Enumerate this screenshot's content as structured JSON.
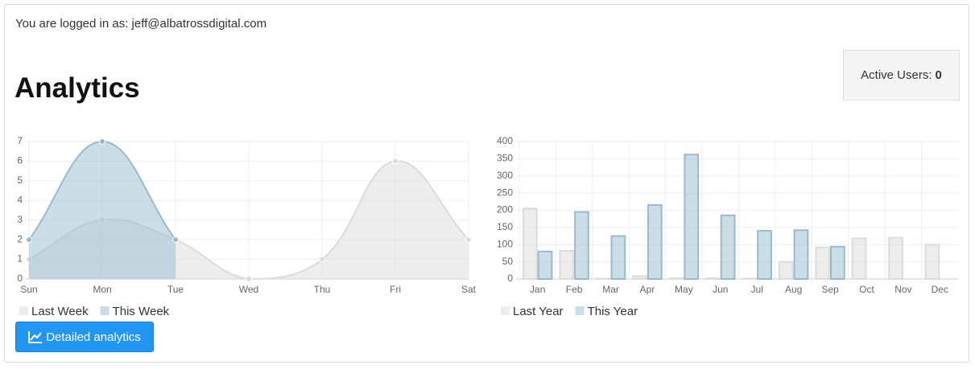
{
  "login_text": "You are logged in as: jeff@albatrossdigital.com",
  "heading": "Analytics",
  "active_users": {
    "label": "Active Users:",
    "value": 0
  },
  "button": "Detailed analytics",
  "chart_data": [
    {
      "type": "line",
      "categories": [
        "Sun",
        "Mon",
        "Tue",
        "Wed",
        "Thu",
        "Fri",
        "Sat"
      ],
      "series": [
        {
          "name": "Last Week",
          "color": "#dcdcdc",
          "fill": "rgba(220,220,220,0.5)",
          "values": [
            1,
            3,
            2,
            0,
            1,
            6,
            2
          ]
        },
        {
          "name": "This Week",
          "color": "#97bbcd",
          "fill": "rgba(151,187,205,0.5)",
          "values": [
            2,
            7,
            2,
            null,
            null,
            null,
            null
          ]
        }
      ],
      "ylim": [
        0,
        7
      ],
      "yticks": [
        0,
        1,
        2,
        3,
        4,
        5,
        6,
        7
      ],
      "grid": true
    },
    {
      "type": "bar",
      "categories": [
        "Jan",
        "Feb",
        "Mar",
        "Apr",
        "May",
        "Jun",
        "Jul",
        "Aug",
        "Sep",
        "Oct",
        "Nov",
        "Dec"
      ],
      "series": [
        {
          "name": "Last Year",
          "color": "#dcdcdc",
          "fill": "rgba(220,220,220,0.5)",
          "values": [
            205,
            82,
            1,
            8,
            2,
            2,
            1,
            50,
            92,
            118,
            120,
            100
          ]
        },
        {
          "name": "This Year",
          "color": "#97bbcd",
          "fill": "rgba(151,187,205,0.5)",
          "values": [
            80,
            195,
            125,
            215,
            362,
            185,
            140,
            142,
            94,
            null,
            null,
            null
          ]
        }
      ],
      "ylim": [
        0,
        400
      ],
      "yticks": [
        0,
        50,
        100,
        150,
        200,
        250,
        300,
        350,
        400
      ],
      "grid": true
    }
  ]
}
